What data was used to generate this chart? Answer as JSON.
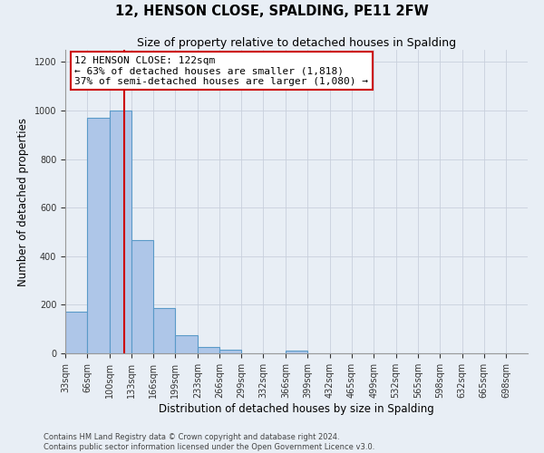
{
  "title": "12, HENSON CLOSE, SPALDING, PE11 2FW",
  "subtitle": "Size of property relative to detached houses in Spalding",
  "xlabel": "Distribution of detached houses by size in Spalding",
  "ylabel": "Number of detached properties",
  "bar_labels": [
    "33sqm",
    "66sqm",
    "100sqm",
    "133sqm",
    "166sqm",
    "199sqm",
    "233sqm",
    "266sqm",
    "299sqm",
    "332sqm",
    "366sqm",
    "399sqm",
    "432sqm",
    "465sqm",
    "499sqm",
    "532sqm",
    "565sqm",
    "598sqm",
    "632sqm",
    "665sqm",
    "698sqm"
  ],
  "bar_values": [
    170,
    970,
    1000,
    465,
    185,
    75,
    25,
    15,
    0,
    0,
    10,
    0,
    0,
    0,
    0,
    0,
    0,
    0,
    0,
    0,
    0
  ],
  "bar_color": "#aec6e8",
  "bar_edge_color": "#5a9ac8",
  "ylim": [
    0,
    1250
  ],
  "yticks": [
    0,
    200,
    400,
    600,
    800,
    1000,
    1200
  ],
  "property_line_x": 122,
  "property_line_color": "#cc0000",
  "annotation_line1": "12 HENSON CLOSE: 122sqm",
  "annotation_line2": "← 63% of detached houses are smaller (1,818)",
  "annotation_line3": "37% of semi-detached houses are larger (1,080) →",
  "annotation_box_color": "#ffffff",
  "annotation_box_edge": "#cc0000",
  "footer_line1": "Contains HM Land Registry data © Crown copyright and database right 2024.",
  "footer_line2": "Contains public sector information licensed under the Open Government Licence v3.0.",
  "background_color": "#e8eef5",
  "plot_bg_color": "#e8eef5",
  "bin_edges": [
    33,
    66,
    100,
    133,
    166,
    199,
    233,
    266,
    299,
    332,
    366,
    399,
    432,
    465,
    499,
    532,
    565,
    598,
    632,
    665,
    698,
    731
  ]
}
